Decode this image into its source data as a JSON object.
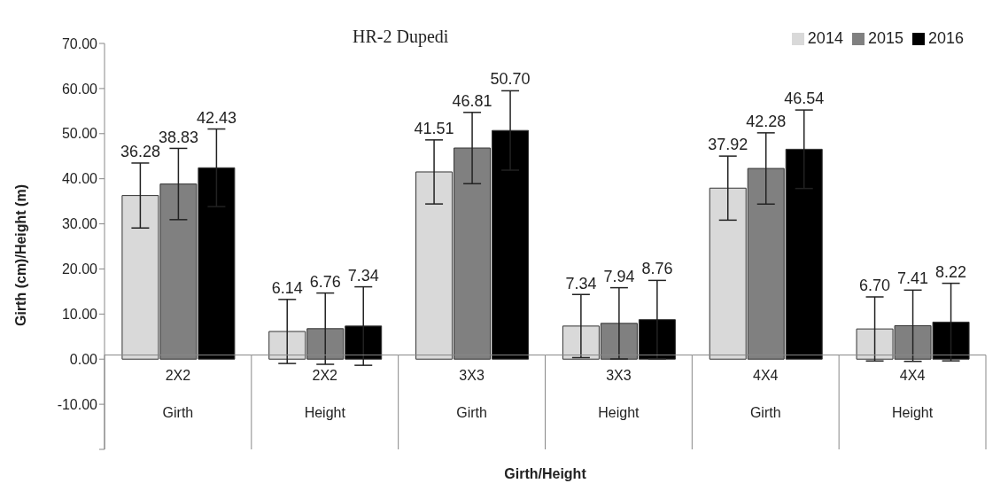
{
  "chart_data": {
    "type": "bar",
    "title": "HR-2 Dupedi",
    "xlabel": "Girth/Height",
    "ylabel": "Girth  (cm)/Height (m)",
    "categories": [
      "2X2\nGirth",
      "2X2\nHeight",
      "3X3\nGirth",
      "3X3\nHeight",
      "4X4\nGirth",
      "4X4\nHeight"
    ],
    "series": [
      {
        "name": "2014",
        "color": "#d9d9d9",
        "values": [
          36.28,
          6.14,
          41.51,
          7.34,
          37.92,
          6.7
        ],
        "value_labels": [
          "36.28",
          "6.14",
          "41.51",
          "7.34",
          "37.92",
          "6.70"
        ],
        "errors": [
          7.2,
          7.1,
          7.1,
          7.0,
          7.1,
          7.1
        ]
      },
      {
        "name": "2015",
        "color": "#808080",
        "values": [
          38.83,
          6.76,
          46.81,
          7.94,
          42.28,
          7.41
        ],
        "value_labels": [
          "38.83",
          "6.76",
          "46.81",
          "7.94",
          "42.28",
          "7.41"
        ],
        "errors": [
          7.9,
          7.9,
          7.9,
          7.9,
          7.9,
          7.9
        ]
      },
      {
        "name": "2016",
        "color": "#000000",
        "values": [
          42.43,
          7.34,
          50.7,
          8.76,
          46.54,
          8.22
        ],
        "value_labels": [
          "42.43",
          "7.34",
          "50.70",
          "8.76",
          "46.54",
          "8.22"
        ],
        "errors": [
          8.6,
          8.7,
          8.8,
          8.7,
          8.7,
          8.6
        ]
      }
    ],
    "ylim": [
      -20,
      70
    ],
    "yticks": [
      {
        "value": -20,
        "label": null
      },
      {
        "value": -10,
        "label": "-10.00"
      },
      {
        "value": 0,
        "label": "0.00"
      },
      {
        "value": 10,
        "label": "10.00"
      },
      {
        "value": 20,
        "label": "20.00"
      },
      {
        "value": 30,
        "label": "30.00"
      },
      {
        "value": 40,
        "label": "40.00"
      },
      {
        "value": 50,
        "label": "50.00"
      },
      {
        "value": 60,
        "label": "60.00"
      },
      {
        "value": 70,
        "label": "70.00"
      }
    ],
    "grid": false,
    "legend": "top right"
  }
}
